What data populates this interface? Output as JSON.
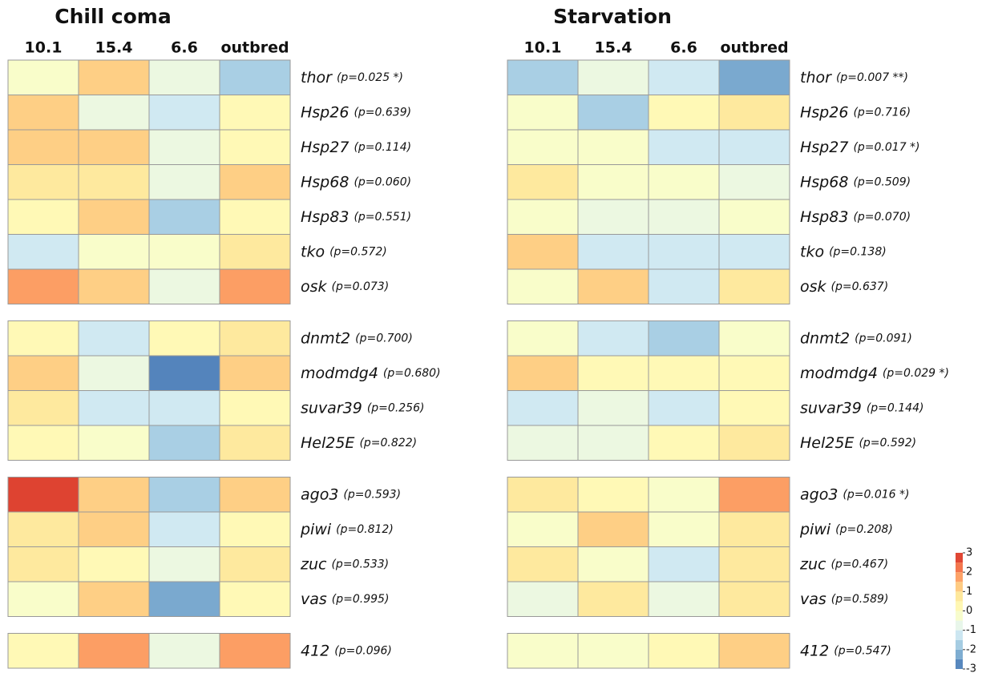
{
  "chart_data": [
    {
      "type": "heatmap",
      "title": "Chill coma",
      "columns": [
        "10.1",
        "15.4",
        "6.6",
        "outbred"
      ],
      "zlim": [
        -3,
        3
      ],
      "colors": [
        "#4575b4",
        "#91bfdb",
        "#e0f3f8",
        "#ffffbf",
        "#fee090",
        "#fc8d59",
        "#d73027"
      ],
      "groups": [
        {
          "genes": [
            "thor",
            "Hsp26",
            "Hsp27",
            "Hsp68",
            "Hsp83",
            "tko",
            "osk"
          ],
          "p_values": [
            "(p=0.025 *)",
            "(p=0.639)",
            "(p=0.114)",
            "(p=0.060)",
            "(p=0.551)",
            "(p=0.572)",
            "(p=0.073)"
          ],
          "values": [
            [
              -0.2,
              1.2,
              -0.6,
              -1.7
            ],
            [
              1.2,
              -0.6,
              -1.2,
              0.2
            ],
            [
              1.2,
              1.2,
              -0.6,
              0.2
            ],
            [
              0.7,
              0.7,
              -0.6,
              1.2
            ],
            [
              0.2,
              1.2,
              -1.7,
              0.2
            ],
            [
              -1.2,
              -0.2,
              -0.2,
              0.7
            ],
            [
              1.8,
              1.2,
              -0.6,
              1.8
            ]
          ]
        },
        {
          "genes": [
            "dnmt2",
            "modmdg4",
            "suvar39",
            "Hel25E"
          ],
          "p_values": [
            "(p=0.700)",
            "(p=0.680)",
            "(p=0.256)",
            "(p=0.822)"
          ],
          "values": [
            [
              0.2,
              -1.2,
              0.2,
              0.7
            ],
            [
              1.2,
              -0.6,
              -2.8,
              1.2
            ],
            [
              0.7,
              -1.2,
              -1.2,
              0.2
            ],
            [
              0.2,
              -0.2,
              -1.7,
              0.7
            ]
          ]
        },
        {
          "genes": [
            "ago3",
            "piwi",
            "zuc",
            "vas"
          ],
          "p_values": [
            "(p=0.593)",
            "(p=0.812)",
            "(p=0.533)",
            "(p=0.995)"
          ],
          "values": [
            [
              2.8,
              1.2,
              -1.7,
              1.2
            ],
            [
              0.7,
              1.2,
              -1.2,
              0.2
            ],
            [
              0.7,
              0.2,
              -0.6,
              0.7
            ],
            [
              -0.2,
              1.2,
              -2.3,
              0.2
            ]
          ]
        },
        {
          "genes": [
            "412"
          ],
          "p_values": [
            "(p=0.096)"
          ],
          "values": [
            [
              0.2,
              1.8,
              -0.6,
              1.8
            ]
          ]
        }
      ]
    },
    {
      "type": "heatmap",
      "title": "Starvation",
      "columns": [
        "10.1",
        "15.4",
        "6.6",
        "outbred"
      ],
      "zlim": [
        -3,
        3
      ],
      "colors": [
        "#4575b4",
        "#91bfdb",
        "#e0f3f8",
        "#ffffbf",
        "#fee090",
        "#fc8d59",
        "#d73027"
      ],
      "colorbar": true,
      "zticks": [
        3,
        2,
        1,
        0,
        -1,
        -2,
        -3
      ],
      "groups": [
        {
          "genes": [
            "thor",
            "Hsp26",
            "Hsp27",
            "Hsp68",
            "Hsp83",
            "tko",
            "osk"
          ],
          "p_values": [
            "(p=0.007 **)",
            "(p=0.716)",
            "(p=0.017 *)",
            "(p=0.509)",
            "(p=0.070)",
            "(p=0.138)",
            "(p=0.637)"
          ],
          "values": [
            [
              -1.7,
              -0.6,
              -1.2,
              -2.3
            ],
            [
              -0.2,
              -1.7,
              0.2,
              0.7
            ],
            [
              -0.2,
              -0.2,
              -1.2,
              -1.2
            ],
            [
              0.7,
              -0.2,
              -0.2,
              -0.6
            ],
            [
              -0.2,
              -0.6,
              -0.6,
              -0.2
            ],
            [
              1.2,
              -1.2,
              -1.2,
              -1.2
            ],
            [
              -0.2,
              1.2,
              -1.2,
              0.7
            ]
          ]
        },
        {
          "genes": [
            "dnmt2",
            "modmdg4",
            "suvar39",
            "Hel25E"
          ],
          "p_values": [
            "(p=0.091)",
            "(p=0.029 *)",
            "(p=0.144)",
            "(p=0.592)"
          ],
          "values": [
            [
              -0.2,
              -1.2,
              -1.7,
              -0.2
            ],
            [
              1.2,
              0.2,
              0.2,
              0.2
            ],
            [
              -1.2,
              -0.6,
              -1.2,
              0.2
            ],
            [
              -0.6,
              -0.6,
              0.2,
              0.7
            ]
          ]
        },
        {
          "genes": [
            "ago3",
            "piwi",
            "zuc",
            "vas"
          ],
          "p_values": [
            "(p=0.016 *)",
            "(p=0.208)",
            "(p=0.467)",
            "(p=0.589)"
          ],
          "values": [
            [
              0.7,
              0.2,
              -0.2,
              1.8
            ],
            [
              -0.2,
              1.2,
              -0.2,
              0.7
            ],
            [
              0.7,
              -0.2,
              -1.2,
              0.7
            ],
            [
              -0.6,
              0.7,
              -0.6,
              0.7
            ]
          ]
        },
        {
          "genes": [
            "412"
          ],
          "p_values": [
            "(p=0.547)"
          ],
          "values": [
            [
              -0.2,
              -0.2,
              0.2,
              1.2
            ]
          ]
        }
      ]
    }
  ]
}
